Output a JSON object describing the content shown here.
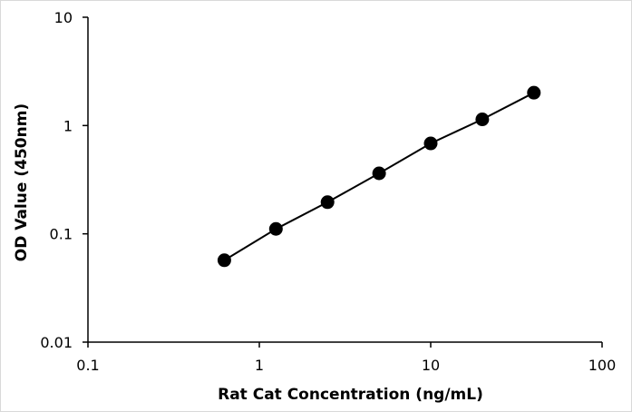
{
  "chart_data": {
    "type": "line",
    "x_scale": "log",
    "y_scale": "log",
    "xlim": [
      0.1,
      100
    ],
    "ylim": [
      0.01,
      10
    ],
    "x_ticks": [
      0.1,
      1,
      10,
      100
    ],
    "y_ticks": [
      0.01,
      0.1,
      1,
      10
    ],
    "x_tick_labels": [
      "0.1",
      "1",
      "10",
      "100"
    ],
    "y_tick_labels": [
      "0.01",
      "0.1",
      "1",
      "10"
    ],
    "xlabel": "Rat Cat Concentration  (ng/mL)",
    "ylabel": "OD Value (450nm)",
    "grid": false,
    "legend": "none",
    "series": [
      {
        "x": [
          0.625,
          1.25,
          2.5,
          5,
          10,
          20,
          40
        ],
        "y": [
          0.057,
          0.111,
          0.196,
          0.362,
          0.684,
          1.14,
          2.01
        ],
        "color": "#000000",
        "marker": "circle"
      }
    ]
  }
}
